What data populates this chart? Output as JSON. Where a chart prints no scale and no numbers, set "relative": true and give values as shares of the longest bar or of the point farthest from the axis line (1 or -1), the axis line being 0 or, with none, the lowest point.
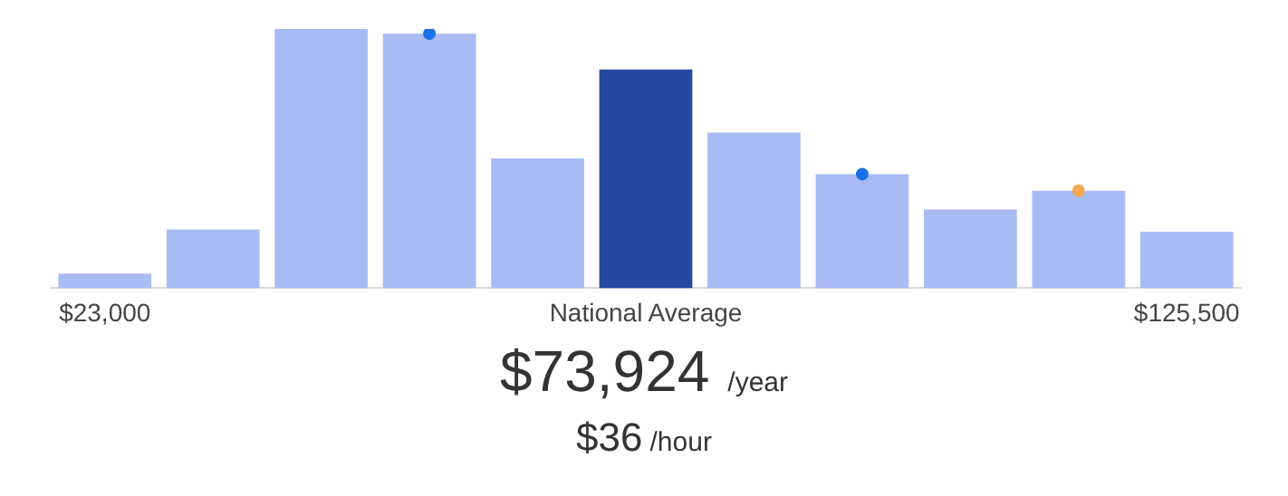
{
  "chart_data": {
    "type": "bar",
    "relative": true,
    "categories": [
      "$23,000",
      null,
      null,
      null,
      null,
      "National Average",
      null,
      null,
      null,
      null,
      "$125,500"
    ],
    "series": [
      {
        "type": "bar",
        "colors": [
          "#a9bbf4",
          "#a9bbf4",
          "#a9bbf4",
          "#a9bbf4",
          "#a9bbf4",
          "#2649a4",
          "#a9bbf4",
          "#a9bbf4",
          "#a9bbf4",
          "#a9bbf4",
          "#a9bbf4"
        ],
        "values": [
          0.056,
          0.227,
          1,
          0.982,
          0.501,
          0.844,
          0.6,
          0.44,
          0.303,
          0.376,
          0.218
        ]
      },
      {
        "type": "scatter",
        "color": "#1a73e8",
        "values": [
          null,
          null,
          null,
          0.982,
          null,
          null,
          null,
          0.44,
          null,
          null,
          null
        ]
      },
      {
        "type": "scatter",
        "color": "#f4a94e",
        "values": [
          null,
          null,
          null,
          null,
          null,
          null,
          null,
          null,
          null,
          0.376,
          null
        ]
      }
    ],
    "marker": "circle",
    "grid": false,
    "legend": false,
    "annotations": [
      "$73,924",
      "/year",
      "$36",
      "/hour"
    ]
  }
}
